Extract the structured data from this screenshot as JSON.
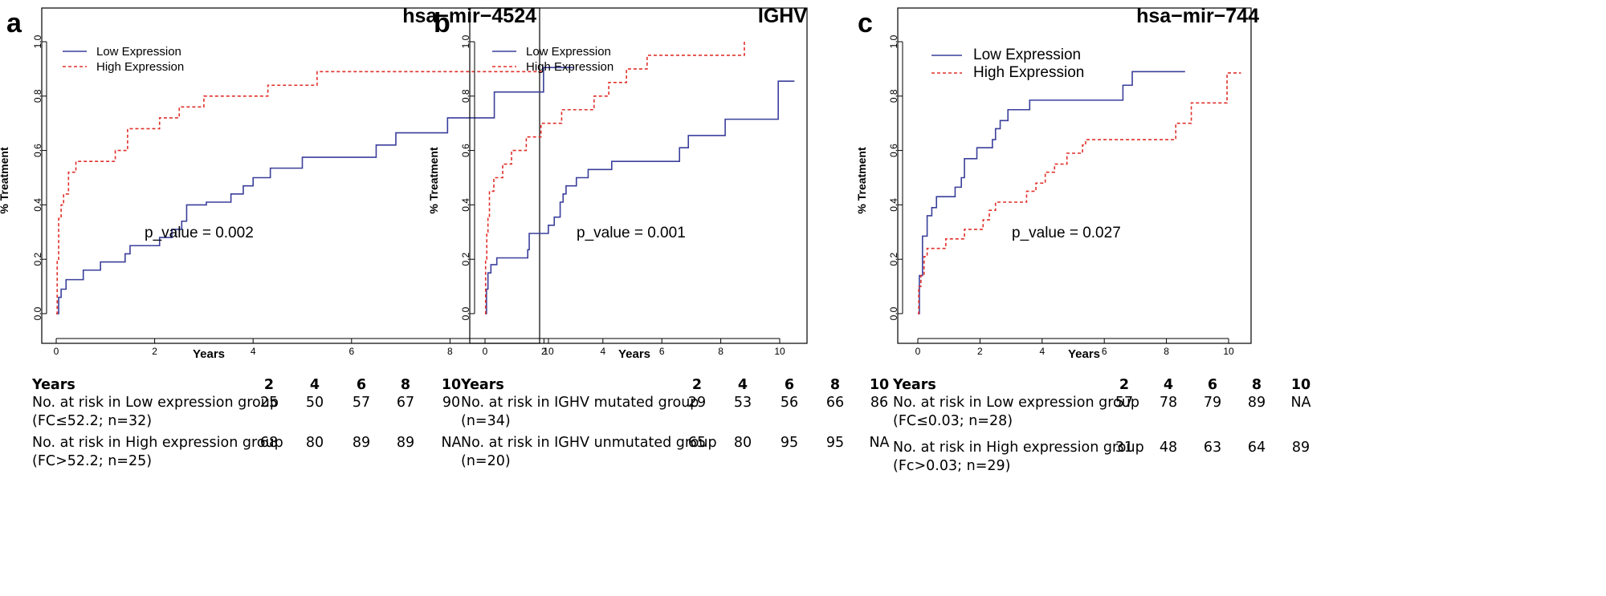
{
  "panels": [
    {
      "letter": "a",
      "title": "hsa−mir−4524",
      "p_value_text": "p_value =  0.002",
      "legend": [
        "Low Expression",
        "High Expression"
      ],
      "table": {
        "header": "Years",
        "cols": [
          "2",
          "4",
          "6",
          "8",
          "10"
        ],
        "rows": [
          {
            "label": "No. at risk in Low expression group",
            "sub": "(FC≤52.2; n=32)",
            "values": [
              "25",
              "50",
              "57",
              "67",
              "90"
            ]
          },
          {
            "label": "No. at risk in High expression group",
            "sub": "(FC>52.2; n=25)",
            "values": [
              "68",
              "80",
              "89",
              "89",
              "NA"
            ]
          }
        ]
      }
    },
    {
      "letter": "b",
      "title": "IGHV",
      "p_value_text": "p_value =  0.001",
      "legend": [
        "Low Expression",
        "High Expression"
      ],
      "table": {
        "header": "Years",
        "cols": [
          "2",
          "4",
          "6",
          "8",
          "10"
        ],
        "rows": [
          {
            "label": "No. at risk in IGHV mutated group",
            "sub": "(n=34)",
            "values": [
              "29",
              "53",
              "56",
              "66",
              "86"
            ]
          },
          {
            "label": "No. at risk in IGHV unmutated group",
            "sub": "(n=20)",
            "values": [
              "65",
              "80",
              "95",
              "95",
              "NA"
            ]
          }
        ]
      }
    },
    {
      "letter": "c",
      "title": "hsa−mir−744",
      "p_value_text": "p_value =  0.027",
      "legend": [
        "Low Expression",
        "High Expression"
      ],
      "table": {
        "header": "Years",
        "cols": [
          "2",
          "4",
          "6",
          "8",
          "10"
        ],
        "rows": [
          {
            "label": "No. at risk in Low expression group",
            "sub": "(FC≤0.03; n=28)",
            "values": [
              "57",
              "78",
              "79",
              "89",
              "NA"
            ]
          },
          {
            "label": "No. at risk in High expression group",
            "sub": "(Fc>0.03; n=29)",
            "values": [
              "31",
              "48",
              "63",
              "64",
              "89"
            ]
          }
        ]
      }
    }
  ],
  "chart_data": [
    {
      "type": "line",
      "title": "hsa−mir−4524",
      "xlabel": "Years",
      "ylabel": "% Treatment",
      "xlim": [
        0,
        10.6
      ],
      "ylim": [
        0,
        1.0
      ],
      "xticks": [
        0,
        2,
        4,
        6,
        8,
        10
      ],
      "yticks": [
        0.0,
        0.2,
        0.4,
        0.6,
        0.8,
        1.0
      ],
      "ytick_labels": [
        "0.0",
        "0.2",
        "0.4",
        "0.6",
        "0.8",
        "1.0"
      ],
      "grid": false,
      "legend_position": "top-left",
      "series": [
        {
          "name": "Low Expression",
          "color": "#3a3f9b",
          "style": "solid",
          "x": [
            0,
            0.05,
            0.1,
            0.2,
            0.55,
            0.9,
            1.4,
            1.5,
            2.1,
            2.35,
            2.55,
            2.65,
            3.05,
            3.55,
            3.8,
            4.0,
            4.35,
            5.0,
            6.5,
            6.9,
            7.95,
            8.9,
            9.9,
            10.5
          ],
          "y": [
            0,
            0.06,
            0.09,
            0.125,
            0.16,
            0.19,
            0.22,
            0.25,
            0.28,
            0.31,
            0.34,
            0.4,
            0.41,
            0.44,
            0.47,
            0.5,
            0.535,
            0.575,
            0.62,
            0.665,
            0.72,
            0.815,
            0.905,
            0.905
          ]
        },
        {
          "name": "High Expression",
          "color": "#e0302a",
          "style": "dashed",
          "x": [
            0,
            0.02,
            0.05,
            0.1,
            0.15,
            0.25,
            0.4,
            1.2,
            1.45,
            2.1,
            2.5,
            3.0,
            3.3,
            4.3,
            5.3,
            9.9
          ],
          "y": [
            0,
            0.2,
            0.35,
            0.4,
            0.44,
            0.52,
            0.56,
            0.6,
            0.68,
            0.72,
            0.76,
            0.8,
            0.8,
            0.84,
            0.89,
            0.89
          ]
        }
      ],
      "annotations": [
        "p_value =  0.002"
      ]
    },
    {
      "type": "line",
      "title": "IGHV",
      "xlabel": "Years",
      "ylabel": "% Treatment",
      "xlim": [
        0,
        10.6
      ],
      "ylim": [
        0,
        1.0
      ],
      "xticks": [
        0,
        2,
        4,
        6,
        8,
        10
      ],
      "yticks": [
        0.0,
        0.2,
        0.4,
        0.6,
        0.8,
        1.0
      ],
      "ytick_labels": [
        "0.0",
        "0.2",
        "0.4",
        "0.6",
        "0.8",
        "1.0"
      ],
      "grid": false,
      "legend_position": "top-left",
      "series": [
        {
          "name": "Low Expression",
          "color": "#3a3f9b",
          "style": "solid",
          "x": [
            0,
            0.05,
            0.1,
            0.2,
            0.4,
            1.45,
            1.5,
            2.15,
            2.35,
            2.55,
            2.65,
            2.75,
            3.1,
            3.5,
            3.8,
            4.3,
            6.6,
            6.9,
            8.15,
            9.95,
            10.5
          ],
          "y": [
            0,
            0.09,
            0.15,
            0.18,
            0.205,
            0.235,
            0.295,
            0.325,
            0.355,
            0.41,
            0.44,
            0.47,
            0.5,
            0.53,
            0.53,
            0.56,
            0.61,
            0.655,
            0.715,
            0.855,
            0.855
          ],
          "hold_to": [
            null
          ]
        },
        {
          "name": "High Expression",
          "color": "#e0302a",
          "style": "dashed",
          "x": [
            0,
            0.02,
            0.06,
            0.1,
            0.15,
            0.3,
            0.6,
            0.9,
            1.4,
            1.9,
            2.6,
            3.1,
            3.7,
            3.9,
            4.2,
            4.8,
            5.1,
            5.5,
            8.8
          ],
          "y": [
            0,
            0.2,
            0.3,
            0.35,
            0.45,
            0.5,
            0.55,
            0.6,
            0.65,
            0.7,
            0.75,
            0.75,
            0.8,
            0.8,
            0.85,
            0.9,
            0.9,
            0.95,
            1.0
          ]
        }
      ],
      "annotations": [
        "p_value =  0.001"
      ]
    },
    {
      "type": "line",
      "title": "hsa−mir−744",
      "xlabel": "Years",
      "ylabel": "% Treatment",
      "xlim": [
        0,
        10.6
      ],
      "ylim": [
        0,
        1.0
      ],
      "xticks": [
        0,
        2,
        4,
        6,
        8,
        10
      ],
      "yticks": [
        0.0,
        0.2,
        0.4,
        0.6,
        0.8,
        1.0
      ],
      "ytick_labels": [
        "0.0",
        "0.2",
        "0.4",
        "0.6",
        "0.8",
        "1.0"
      ],
      "grid": false,
      "legend_position": "top-left",
      "series": [
        {
          "name": "Low Expression",
          "color": "#3a3f9b",
          "style": "solid",
          "x": [
            0,
            0.05,
            0.15,
            0.3,
            0.45,
            0.6,
            1.2,
            1.4,
            1.5,
            1.9,
            2.4,
            2.5,
            2.65,
            2.9,
            3.0,
            3.1,
            3.6,
            6.6,
            6.9,
            8.6
          ],
          "y": [
            0,
            0.14,
            0.285,
            0.36,
            0.39,
            0.43,
            0.465,
            0.5,
            0.57,
            0.61,
            0.64,
            0.68,
            0.71,
            0.75,
            0.75,
            0.75,
            0.785,
            0.84,
            0.89,
            0.89
          ]
        },
        {
          "name": "High Expression",
          "color": "#e0302a",
          "style": "dashed",
          "x": [
            0,
            0.03,
            0.1,
            0.2,
            0.3,
            0.9,
            1.5,
            2.1,
            2.3,
            2.5,
            2.9,
            3.5,
            3.8,
            4.1,
            4.4,
            4.8,
            5.3,
            5.4,
            8.3,
            8.8,
            9.95,
            10.4
          ],
          "y": [
            0,
            0.1,
            0.14,
            0.21,
            0.24,
            0.275,
            0.31,
            0.345,
            0.38,
            0.41,
            0.41,
            0.45,
            0.48,
            0.52,
            0.55,
            0.59,
            0.62,
            0.64,
            0.7,
            0.775,
            0.885,
            0.885
          ]
        }
      ],
      "annotations": [
        "p_value =  0.027"
      ]
    }
  ]
}
